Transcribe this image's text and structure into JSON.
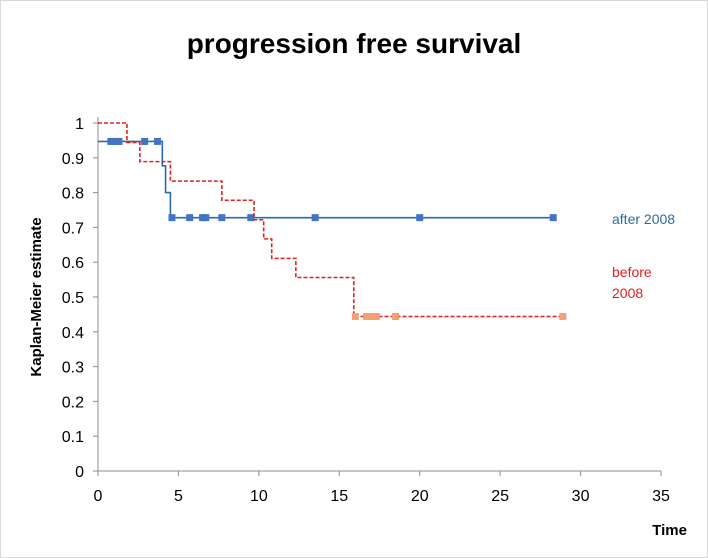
{
  "chart_data": {
    "type": "line",
    "title": "progression free survival",
    "xlabel": "Time",
    "ylabel": "Kaplan-Meier estimate",
    "xlim": [
      0,
      35
    ],
    "ylim": [
      0,
      1
    ],
    "xticks": [
      "0",
      "5",
      "10",
      "15",
      "20",
      "25",
      "30",
      "35"
    ],
    "yticks": [
      "0",
      "0.1",
      "0.2",
      "0.3",
      "0.4",
      "0.5",
      "0.6",
      "0.7",
      "0.8",
      "0.9",
      "1"
    ],
    "grid": false,
    "series": [
      {
        "name": "after 2008",
        "color": "#2e6aa8",
        "censor_color": "#4472c4",
        "line_style": "solid",
        "legend_lines": [
          "after 2008"
        ],
        "steps": [
          [
            0,
            0.947
          ],
          [
            4.0,
            0.877
          ],
          [
            4.2,
            0.8
          ],
          [
            4.5,
            0.728
          ],
          [
            28.3,
            0.728
          ]
        ],
        "censored": [
          [
            0.8,
            0.947
          ],
          [
            1.0,
            0.947
          ],
          [
            1.3,
            0.947
          ],
          [
            2.9,
            0.947
          ],
          [
            3.7,
            0.947
          ],
          [
            4.6,
            0.728
          ],
          [
            5.7,
            0.728
          ],
          [
            6.5,
            0.728
          ],
          [
            6.7,
            0.728
          ],
          [
            7.7,
            0.728
          ],
          [
            9.5,
            0.728
          ],
          [
            13.5,
            0.728
          ],
          [
            20.0,
            0.728
          ],
          [
            28.3,
            0.728
          ]
        ]
      },
      {
        "name": "before 2008",
        "color": "#e02020",
        "censor_color": "#f4a074",
        "line_style": "dashed",
        "legend_lines": [
          "before",
          "2008"
        ],
        "steps": [
          [
            0,
            1.0
          ],
          [
            1.8,
            0.944
          ],
          [
            2.6,
            0.889
          ],
          [
            4.5,
            0.833
          ],
          [
            7.7,
            0.778
          ],
          [
            9.7,
            0.722
          ],
          [
            10.3,
            0.667
          ],
          [
            10.8,
            0.611
          ],
          [
            12.3,
            0.556
          ],
          [
            15.9,
            0.444
          ],
          [
            28.9,
            0.444
          ]
        ],
        "censored": [
          [
            16.0,
            0.444
          ],
          [
            16.7,
            0.444
          ],
          [
            16.9,
            0.444
          ],
          [
            17.1,
            0.444
          ],
          [
            17.3,
            0.444
          ],
          [
            18.5,
            0.444
          ],
          [
            28.9,
            0.444
          ]
        ]
      }
    ]
  }
}
